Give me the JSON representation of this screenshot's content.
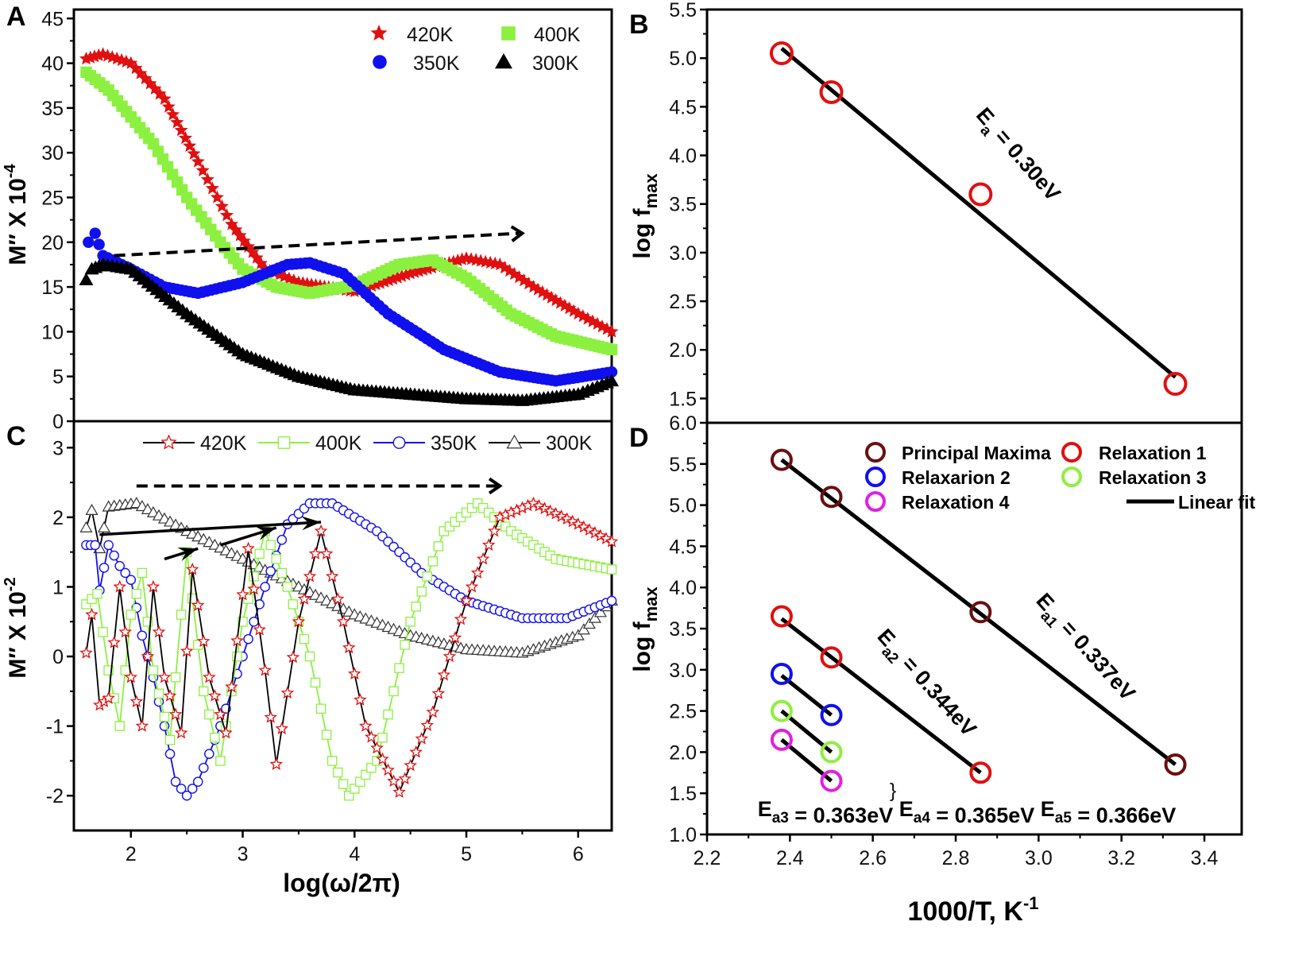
{
  "colors": {
    "red": "#e01010",
    "green": "#8cf040",
    "blue": "#1010ee",
    "black": "#000000",
    "maroon": "#6b0f0f",
    "magenta": "#e020e0",
    "lime": "#90ee40"
  },
  "chart_data": [
    {
      "panel": "A",
      "type": "scatter",
      "ylabel": {
        "main": "M″ X 10",
        "sup": "-4"
      },
      "xlim": [
        1.49,
        6.3
      ],
      "ylim": [
        0,
        46
      ],
      "yticks": [
        0,
        5,
        10,
        15,
        20,
        25,
        30,
        35,
        40,
        45
      ],
      "xticks": [
        2,
        3,
        4,
        5,
        6
      ],
      "legend": [
        "420K",
        "400K",
        "350K",
        "300K"
      ],
      "legend_position": "top-right",
      "series": [
        {
          "name": "420K",
          "marker": "star-filled",
          "color": "#e01010",
          "points": [
            [
              1.6,
              40.5
            ],
            [
              1.75,
              41
            ],
            [
              2.0,
              40
            ],
            [
              2.3,
              36
            ],
            [
              2.6,
              29
            ],
            [
              2.9,
              22
            ],
            [
              3.2,
              17
            ],
            [
              3.5,
              15.5
            ],
            [
              4.0,
              14.5
            ],
            [
              4.5,
              16.5
            ],
            [
              5.0,
              18.2
            ],
            [
              5.3,
              17.5
            ],
            [
              5.6,
              15
            ],
            [
              6.0,
              12
            ],
            [
              6.3,
              10
            ]
          ]
        },
        {
          "name": "400K",
          "marker": "square-filled",
          "color": "#8cf040",
          "points": [
            [
              1.6,
              39
            ],
            [
              1.8,
              37
            ],
            [
              2.2,
              31
            ],
            [
              2.5,
              25
            ],
            [
              2.8,
              20
            ],
            [
              3.0,
              17
            ],
            [
              3.3,
              15
            ],
            [
              3.6,
              14.3
            ],
            [
              4.0,
              15.2
            ],
            [
              4.4,
              17.5
            ],
            [
              4.7,
              18
            ],
            [
              5.0,
              16
            ],
            [
              5.4,
              12
            ],
            [
              5.8,
              9.5
            ],
            [
              6.3,
              8
            ]
          ]
        },
        {
          "name": "350K",
          "marker": "circle-filled",
          "color": "#1010ee",
          "points": [
            [
              1.62,
              20
            ],
            [
              1.68,
              21
            ],
            [
              1.75,
              18.5
            ],
            [
              2.0,
              17
            ],
            [
              2.3,
              15
            ],
            [
              2.6,
              14.3
            ],
            [
              3.0,
              15.5
            ],
            [
              3.4,
              17.5
            ],
            [
              3.6,
              17.7
            ],
            [
              3.9,
              16.5
            ],
            [
              4.3,
              12
            ],
            [
              4.8,
              8
            ],
            [
              5.3,
              5.5
            ],
            [
              5.8,
              4.5
            ],
            [
              6.3,
              5.5
            ]
          ]
        },
        {
          "name": "300 K",
          "marker": "triangle-filled",
          "color": "#000000",
          "points": [
            [
              1.6,
              15.8
            ],
            [
              1.65,
              17
            ],
            [
              1.75,
              17.5
            ],
            [
              2.0,
              17
            ],
            [
              2.5,
              12
            ],
            [
              3.0,
              7.5
            ],
            [
              3.5,
              5
            ],
            [
              4.0,
              3.5
            ],
            [
              4.5,
              3
            ],
            [
              5.0,
              2.5
            ],
            [
              5.5,
              2.3
            ],
            [
              6.0,
              3
            ],
            [
              6.3,
              4.5
            ]
          ]
        }
      ],
      "arrows": [
        {
          "style": "dashed",
          "from": [
            1.85,
            18.5
          ],
          "to": [
            5.5,
            21
          ]
        }
      ]
    },
    {
      "panel": "B",
      "type": "scatter",
      "ylabel": {
        "main": "log f",
        "sub": "max"
      },
      "xlim": [
        2.2,
        3.49
      ],
      "ylim": [
        1.25,
        5.5
      ],
      "yticks": [
        1.5,
        2.0,
        2.5,
        3.0,
        3.5,
        4.0,
        4.5,
        5.0,
        5.5
      ],
      "series": [
        {
          "name": "Relaxation",
          "marker": "circle-open",
          "color": "#e01010",
          "points": [
            [
              2.38,
              5.05
            ],
            [
              2.5,
              4.65
            ],
            [
              2.86,
              3.6
            ],
            [
              3.33,
              1.65
            ]
          ]
        }
      ],
      "fits": [
        {
          "from": [
            2.38,
            5.1
          ],
          "to": [
            3.33,
            1.72
          ]
        }
      ],
      "annotation": {
        "E": "E",
        "sub": "a",
        "rest": " = 0.30eV"
      }
    },
    {
      "panel": "C",
      "type": "line",
      "xlabel": "log(ω/2π)",
      "ylabel": {
        "main": "M″ X 10",
        "sup": "-2"
      },
      "xlim": [
        1.49,
        6.3
      ],
      "ylim": [
        -2.5,
        3.38
      ],
      "yticks": [
        -2,
        -1,
        0,
        1,
        2,
        3
      ],
      "xticks": [
        2,
        3,
        4,
        5,
        6
      ],
      "legend": [
        "420K",
        "400K",
        "350K",
        "300K"
      ],
      "legend_position": "top",
      "series": [
        {
          "name": "420K",
          "marker": "star-open",
          "color": "#e01010",
          "line": "#000000",
          "points": [
            [
              1.6,
              0.05
            ],
            [
              1.65,
              0.6
            ],
            [
              1.72,
              -0.7
            ],
            [
              1.8,
              -0.6
            ],
            [
              1.9,
              1.0
            ],
            [
              2.0,
              -0.3
            ],
            [
              2.1,
              -1.0
            ],
            [
              2.2,
              1.0
            ],
            [
              2.3,
              -0.3
            ],
            [
              2.45,
              -1.1
            ],
            [
              2.55,
              1.25
            ],
            [
              2.7,
              -0.3
            ],
            [
              2.85,
              -1.1
            ],
            [
              3.05,
              1.55
            ],
            [
              3.2,
              -0.2
            ],
            [
              3.3,
              -1.55
            ],
            [
              3.5,
              0.5
            ],
            [
              3.7,
              1.8
            ],
            [
              3.9,
              0.5
            ],
            [
              4.1,
              -1.0
            ],
            [
              4.4,
              -1.95
            ],
            [
              4.7,
              -0.8
            ],
            [
              5.0,
              0.8
            ],
            [
              5.3,
              2.0
            ],
            [
              5.6,
              2.2
            ],
            [
              6.0,
              1.9
            ],
            [
              6.3,
              1.65
            ]
          ]
        },
        {
          "name": "400K",
          "marker": "square-open",
          "color": "#8cf040",
          "line": "#8cf040",
          "points": [
            [
              1.6,
              0.75
            ],
            [
              1.7,
              0.9
            ],
            [
              1.8,
              -0.2
            ],
            [
              1.9,
              -1.0
            ],
            [
              2.0,
              0.6
            ],
            [
              2.1,
              1.2
            ],
            [
              2.2,
              -0.2
            ],
            [
              2.35,
              -1.2
            ],
            [
              2.5,
              1.5
            ],
            [
              2.65,
              -0.5
            ],
            [
              2.8,
              -1.5
            ],
            [
              3.0,
              0.5
            ],
            [
              3.2,
              1.8
            ],
            [
              3.4,
              1.0
            ],
            [
              3.6,
              0
            ],
            [
              3.8,
              -1.5
            ],
            [
              3.95,
              -2.0
            ],
            [
              4.2,
              -1.5
            ],
            [
              4.5,
              0.5
            ],
            [
              4.8,
              1.8
            ],
            [
              5.1,
              2.2
            ],
            [
              5.4,
              1.8
            ],
            [
              5.8,
              1.4
            ],
            [
              6.3,
              1.25
            ]
          ]
        },
        {
          "name": "350K",
          "marker": "circle-open",
          "color": "#1010ee",
          "line": "#1010ee",
          "points": [
            [
              1.6,
              1.6
            ],
            [
              1.68,
              1.6
            ],
            [
              1.72,
              0.95
            ],
            [
              1.8,
              1.6
            ],
            [
              1.9,
              1.3
            ],
            [
              2.0,
              1.1
            ],
            [
              2.1,
              0.3
            ],
            [
              2.2,
              -0.3
            ],
            [
              2.3,
              -1.0
            ],
            [
              2.4,
              -1.8
            ],
            [
              2.5,
              -2.0
            ],
            [
              2.6,
              -1.8
            ],
            [
              2.8,
              -1.0
            ],
            [
              3.0,
              0.0
            ],
            [
              3.2,
              1.0
            ],
            [
              3.4,
              1.9
            ],
            [
              3.6,
              2.2
            ],
            [
              3.8,
              2.2
            ],
            [
              4.2,
              1.8
            ],
            [
              4.6,
              1.2
            ],
            [
              5.0,
              0.8
            ],
            [
              5.5,
              0.55
            ],
            [
              5.9,
              0.55
            ],
            [
              6.3,
              0.8
            ]
          ]
        },
        {
          "name": "300K",
          "marker": "triangle-open",
          "color": "#000000",
          "line": "#000000",
          "points": [
            [
              1.6,
              1.85
            ],
            [
              1.65,
              2.1
            ],
            [
              1.72,
              1.55
            ],
            [
              1.8,
              2.15
            ],
            [
              2.05,
              2.2
            ],
            [
              2.5,
              1.8
            ],
            [
              3.0,
              1.4
            ],
            [
              3.5,
              1.0
            ],
            [
              4.0,
              0.6
            ],
            [
              4.5,
              0.3
            ],
            [
              5.0,
              0.1
            ],
            [
              5.5,
              0.05
            ],
            [
              6.0,
              0.3
            ],
            [
              6.3,
              0.8
            ]
          ]
        }
      ],
      "arrows": [
        {
          "style": "dashed",
          "from": [
            2.05,
            2.45
          ],
          "to": [
            5.3,
            2.45
          ]
        },
        {
          "style": "solid",
          "from": [
            1.72,
            1.75
          ],
          "to": [
            3.7,
            1.93
          ]
        },
        {
          "style": "solid",
          "from": [
            2.3,
            1.4
          ],
          "to": [
            2.6,
            1.55
          ]
        },
        {
          "style": "solid",
          "from": [
            2.8,
            1.6
          ],
          "to": [
            3.3,
            1.85
          ]
        }
      ]
    },
    {
      "panel": "D",
      "type": "scatter",
      "xlabel": {
        "main": "1000/T, K",
        "sup": "-1"
      },
      "ylabel": {
        "main": "log f",
        "sub": "max"
      },
      "xlim": [
        2.2,
        3.49
      ],
      "ylim": [
        1.0,
        6.0
      ],
      "yticks": [
        1.0,
        1.5,
        2.0,
        2.5,
        3.0,
        3.5,
        4.0,
        4.5,
        5.0,
        5.5,
        6.0
      ],
      "xticks": [
        2.2,
        2.4,
        2.6,
        2.8,
        3.0,
        3.2,
        3.4
      ],
      "legend_position": "top-right",
      "series": [
        {
          "name": "Principal Maxima",
          "marker": "circle-open",
          "color": "#6b0f0f",
          "points": [
            [
              2.38,
              5.55
            ],
            [
              2.5,
              5.1
            ],
            [
              2.86,
              3.7
            ],
            [
              3.33,
              1.85
            ]
          ]
        },
        {
          "name": "Relaxation 1",
          "marker": "circle-open",
          "color": "#e01010",
          "points": [
            [
              2.38,
              3.65
            ],
            [
              2.5,
              3.15
            ],
            [
              2.86,
              1.75
            ]
          ]
        },
        {
          "name": "Relaxarion 2",
          "marker": "circle-open",
          "color": "#1010ee",
          "points": [
            [
              2.38,
              2.95
            ],
            [
              2.5,
              2.45
            ]
          ]
        },
        {
          "name": "Relaxation 3",
          "marker": "circle-open",
          "color": "#90ee40",
          "points": [
            [
              2.38,
              2.5
            ],
            [
              2.5,
              2.0
            ]
          ]
        },
        {
          "name": "Relaxation 4",
          "marker": "circle-open",
          "color": "#e020e0",
          "points": [
            [
              2.38,
              2.15
            ],
            [
              2.5,
              1.65
            ]
          ]
        }
      ],
      "fit_label": "Linear fit",
      "fits": [
        {
          "from": [
            2.38,
            5.55
          ],
          "to": [
            3.33,
            1.85
          ]
        },
        {
          "from": [
            2.38,
            3.62
          ],
          "to": [
            2.86,
            1.75
          ]
        },
        {
          "from": [
            2.38,
            2.93
          ],
          "to": [
            2.5,
            2.45
          ]
        },
        {
          "from": [
            2.38,
            2.5
          ],
          "to": [
            2.5,
            2.0
          ]
        },
        {
          "from": [
            2.38,
            2.15
          ],
          "to": [
            2.5,
            1.65
          ]
        }
      ],
      "annotations": {
        "ea1": {
          "E": "E",
          "sub": "a1",
          "rest": " = 0.337eV"
        },
        "ea2": {
          "E": "E",
          "sub": "a2",
          "rest": " = 0.344eV"
        },
        "bottom": [
          {
            "E": "E",
            "sub": "a3",
            "rest": " = 0.363eV "
          },
          {
            "E": "E",
            "sub": "a4",
            "rest": " = 0.365eV "
          },
          {
            "E": "E",
            "sub": "a5",
            "rest": " = 0.366eV"
          }
        ],
        "brace": "}"
      }
    }
  ]
}
